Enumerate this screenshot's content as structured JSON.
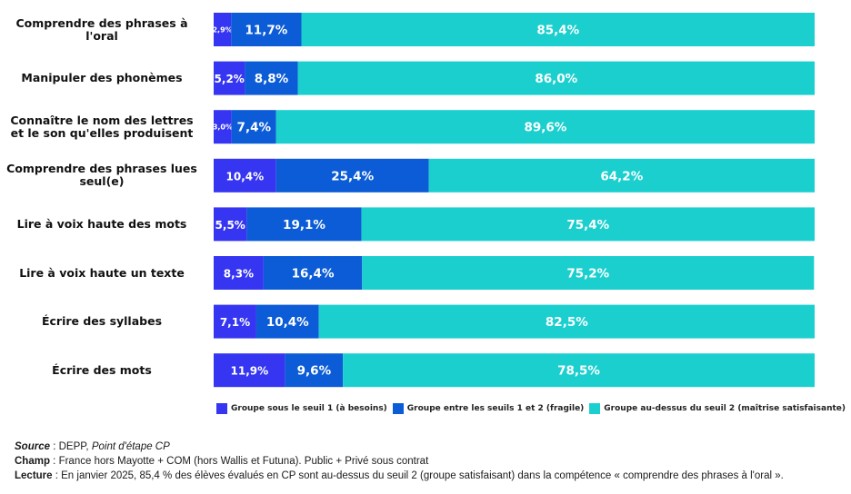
{
  "chart_data": {
    "type": "bar",
    "orientation": "horizontal",
    "stacked": true,
    "categories": [
      "Comprendre des phrases à l'oral",
      "Manipuler des phonèmes",
      "Connaître le nom des lettres et le son qu'elles produisent",
      "Comprendre des phrases lues seul(e)",
      "Lire à voix haute des mots",
      "Lire à voix haute un texte",
      "Écrire des syllabes",
      "Écrire des mots"
    ],
    "series": [
      {
        "name": "Groupe sous le seuil 1 (à besoins)",
        "color": "#3535f2",
        "values": [
          2.9,
          5.2,
          3.0,
          10.4,
          5.5,
          8.3,
          7.1,
          11.9
        ],
        "labels": [
          "2,9%",
          "5,2%",
          "3,0%",
          "10,4%",
          "5,5%",
          "8,3%",
          "7,1%",
          "11,9%"
        ]
      },
      {
        "name": "Groupe entre les seuils 1 et 2 (fragile)",
        "color": "#0b5cd6",
        "values": [
          11.7,
          8.8,
          7.4,
          25.4,
          19.1,
          16.4,
          10.4,
          9.6
        ],
        "labels": [
          "11,7%",
          "8,8%",
          "7,4%",
          "25,4%",
          "19,1%",
          "16,4%",
          "10,4%",
          "9,6%"
        ]
      },
      {
        "name": "Groupe au-dessus du seuil 2 (maîtrise satisfaisante)",
        "color": "#1ccfcf",
        "values": [
          85.4,
          86.0,
          89.6,
          64.2,
          75.4,
          75.2,
          82.5,
          78.5
        ],
        "labels": [
          "85,4%",
          "86,0%",
          "89,6%",
          "64,2%",
          "75,4%",
          "75,2%",
          "82,5%",
          "78,5%"
        ]
      }
    ],
    "xlim": [
      0,
      100
    ],
    "legend": "bottom",
    "grid": false
  },
  "footer": {
    "source_label": "Source",
    "source_text": "DEPP, ",
    "source_italic": "Point d'étape CP",
    "champ_label": "Champ",
    "champ_text": "France hors Mayotte + COM (hors Wallis et Futuna). Public + Privé sous contrat",
    "lecture_label": "Lecture",
    "lecture_text": "En janvier 2025, 85,4 % des élèves évalués en CP sont au-dessus du seuil 2 (groupe satisfaisant) dans la compétence «  comprendre des phrases à l'oral  »."
  }
}
